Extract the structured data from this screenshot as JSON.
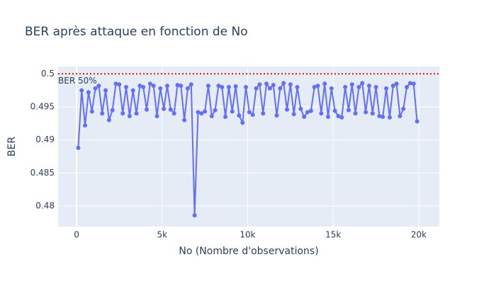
{
  "chart_data": {
    "type": "line",
    "title": "BER après attaque en fonction de No",
    "x_label": "No (Nombre d'observations)",
    "y_label": "BER",
    "x": [
      100,
      300,
      500,
      700,
      900,
      1100,
      1300,
      1500,
      1700,
      1900,
      2100,
      2300,
      2500,
      2700,
      2900,
      3100,
      3300,
      3500,
      3700,
      3900,
      4100,
      4300,
      4500,
      4700,
      4900,
      5100,
      5300,
      5500,
      5700,
      5900,
      6100,
      6300,
      6500,
      6700,
      6900,
      7100,
      7300,
      7500,
      7700,
      7900,
      8100,
      8300,
      8500,
      8700,
      8900,
      9100,
      9300,
      9500,
      9700,
      9900,
      10100,
      10300,
      10500,
      10700,
      10900,
      11100,
      11300,
      11500,
      11700,
      11900,
      12100,
      12300,
      12500,
      12700,
      12900,
      13100,
      13300,
      13500,
      13700,
      13900,
      14100,
      14300,
      14500,
      14700,
      14900,
      15100,
      15300,
      15500,
      15700,
      15900,
      16100,
      16300,
      16500,
      16700,
      16900,
      17100,
      17300,
      17500,
      17700,
      17900,
      18100,
      18300,
      18500,
      18700,
      18900,
      19100,
      19300,
      19500,
      19700,
      19900
    ],
    "series": [
      {
        "name": "BER",
        "color": "#636efa",
        "values": [
          0.4888,
          0.4975,
          0.4922,
          0.4972,
          0.4943,
          0.4978,
          0.4982,
          0.494,
          0.4975,
          0.493,
          0.4945,
          0.4985,
          0.4984,
          0.494,
          0.498,
          0.4936,
          0.4975,
          0.494,
          0.4982,
          0.498,
          0.4946,
          0.4985,
          0.4982,
          0.4936,
          0.4978,
          0.4947,
          0.4982,
          0.4946,
          0.494,
          0.4983,
          0.4982,
          0.493,
          0.4978,
          0.4984,
          0.4786,
          0.4942,
          0.494,
          0.4943,
          0.4982,
          0.4936,
          0.4945,
          0.4982,
          0.498,
          0.4935,
          0.498,
          0.4943,
          0.4981,
          0.4937,
          0.4926,
          0.498,
          0.4942,
          0.4938,
          0.4978,
          0.4984,
          0.494,
          0.4985,
          0.4978,
          0.4983,
          0.4937,
          0.4978,
          0.4986,
          0.4946,
          0.4984,
          0.4939,
          0.498,
          0.4947,
          0.4935,
          0.4942,
          0.4944,
          0.498,
          0.4982,
          0.494,
          0.4985,
          0.4935,
          0.4978,
          0.4944,
          0.4936,
          0.4934,
          0.498,
          0.4945,
          0.4984,
          0.494,
          0.498,
          0.4986,
          0.4942,
          0.4982,
          0.494,
          0.498,
          0.4936,
          0.4935,
          0.4978,
          0.4934,
          0.4982,
          0.4985,
          0.4936,
          0.4947,
          0.498,
          0.4986,
          0.4985,
          0.4928
        ]
      }
    ],
    "hline": {
      "value": 0.5,
      "label": "BER 50%",
      "color": "#ff0000"
    },
    "xlim": [
      -1077,
      21200
    ],
    "ylim": [
      0.4769,
      0.5011
    ],
    "xticks": [
      0,
      {
        "value": 5000,
        "label": "5k"
      },
      {
        "value": 10000,
        "label": "10k"
      },
      {
        "value": 15000,
        "label": "15k"
      },
      {
        "value": 20000,
        "label": "20k"
      }
    ],
    "yticks": [
      0.48,
      0.485,
      0.49,
      0.495,
      0.5
    ],
    "grid": true
  }
}
